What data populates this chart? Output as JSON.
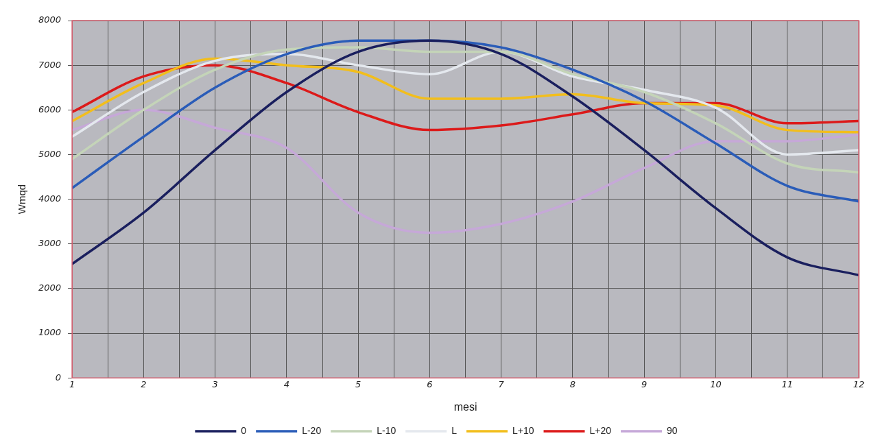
{
  "chart_data": {
    "type": "line",
    "xlabel": "mesi",
    "ylabel": "Wmqd",
    "x": [
      1,
      2,
      3,
      4,
      5,
      6,
      7,
      8,
      9,
      10,
      11,
      12
    ],
    "series": [
      {
        "name": "0",
        "color": "#1a1f5e",
        "values": [
          2550,
          3700,
          5100,
          6400,
          7300,
          7550,
          7250,
          6300,
          5100,
          3800,
          2700,
          2300
        ]
      },
      {
        "name": "L-20",
        "color": "#2a5cb8",
        "values": [
          4250,
          5400,
          6500,
          7250,
          7550,
          7550,
          7400,
          6900,
          6200,
          5250,
          4300,
          3950
        ]
      },
      {
        "name": "L-10",
        "color": "#c4d4b8",
        "values": [
          4900,
          6000,
          6900,
          7350,
          7400,
          7300,
          7300,
          6800,
          6400,
          5700,
          4800,
          4600
        ]
      },
      {
        "name": "L",
        "color": "#e4e8ee",
        "values": [
          5400,
          6400,
          7100,
          7250,
          7000,
          6800,
          7300,
          6750,
          6450,
          6050,
          5000,
          5100
        ]
      },
      {
        "name": "L+10",
        "color": "#f2be1c",
        "values": [
          5750,
          6600,
          7150,
          7000,
          6850,
          6250,
          6250,
          6350,
          6150,
          6100,
          5550,
          5500
        ]
      },
      {
        "name": "L+20",
        "color": "#dc1a1a",
        "values": [
          5950,
          6750,
          7000,
          6600,
          5950,
          5550,
          5650,
          5900,
          6150,
          6150,
          5700,
          5750
        ]
      },
      {
        "name": "90",
        "color": "#c6a8d8",
        "values": [
          5550,
          6000,
          5600,
          5150,
          3700,
          3250,
          3450,
          3950,
          4700,
          5300,
          5300,
          5450
        ]
      }
    ],
    "xlim": [
      1,
      12
    ],
    "xticks": [
      1,
      {
        "value": 1.5,
        "label": null
      },
      2,
      {
        "value": 2.5,
        "label": null
      },
      3,
      {
        "value": 3.5,
        "label": null
      },
      4,
      {
        "value": 4.5,
        "label": null
      },
      5,
      {
        "value": 5.5,
        "label": null
      },
      6,
      {
        "value": 6.5,
        "label": null
      },
      7,
      {
        "value": 7.5,
        "label": null
      },
      8,
      {
        "value": 8.5,
        "label": null
      },
      9,
      {
        "value": 9.5,
        "label": null
      },
      10,
      {
        "value": 10.5,
        "label": null
      },
      11,
      {
        "value": 11.5,
        "label": null
      },
      12
    ],
    "ylim": [
      0,
      8000
    ],
    "yticks": [
      0,
      1000,
      2000,
      3000,
      4000,
      5000,
      6000,
      7000,
      8000
    ],
    "grid": true,
    "legend": "bottom",
    "marker": "none",
    "line_style": "solid"
  }
}
